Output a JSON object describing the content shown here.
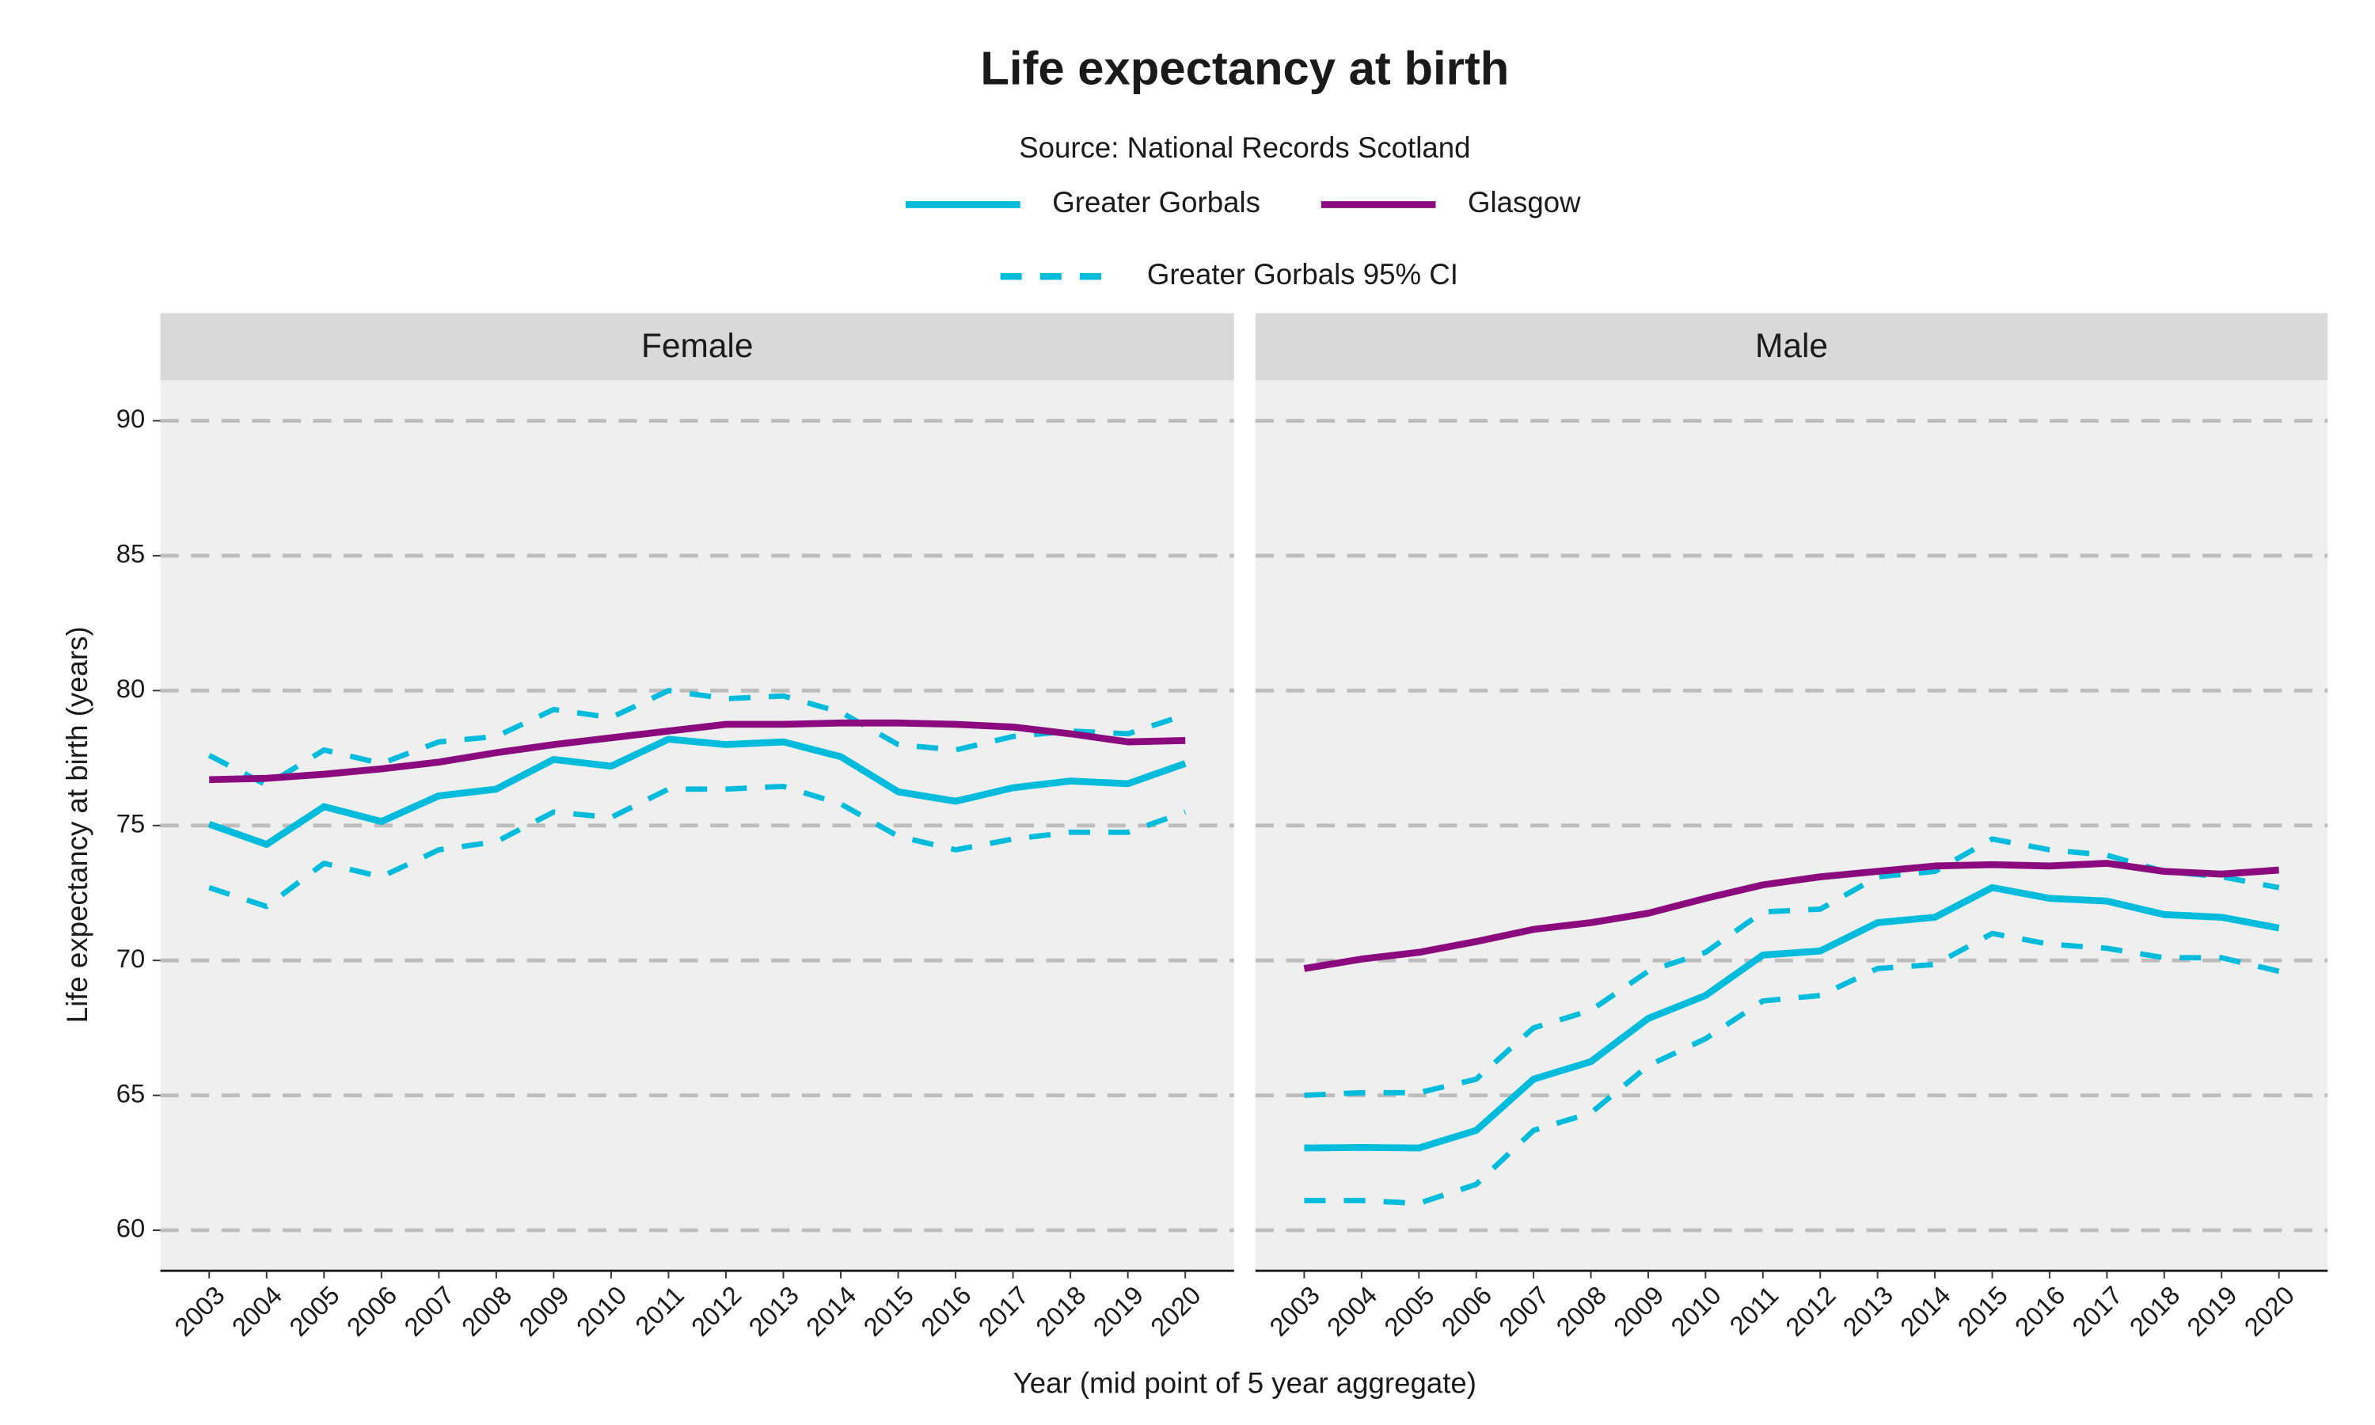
{
  "chart_data": {
    "type": "line",
    "title": "Life expectancy at birth",
    "subtitle": "Source: National Records Scotland",
    "x_label": "Year (mid point of 5 year aggregate)",
    "y_label": "Life expectancy at birth (years)",
    "x": [
      2003,
      2004,
      2005,
      2006,
      2007,
      2008,
      2009,
      2010,
      2011,
      2012,
      2013,
      2014,
      2015,
      2016,
      2017,
      2018,
      2019,
      2020
    ],
    "xlim": [
      2002.15,
      2020.85
    ],
    "xticks": [
      2003,
      2004,
      2005,
      2006,
      2007,
      2008,
      2009,
      2010,
      2011,
      2012,
      2013,
      2014,
      2015,
      2016,
      2017,
      2018,
      2019,
      2020
    ],
    "ylim": [
      58.5,
      91.5
    ],
    "yticks": [
      60,
      65,
      70,
      75,
      80,
      85,
      90
    ],
    "grid": true,
    "legend_position": "top",
    "series": [
      {
        "name": "Greater Gorbals",
        "color": "#00bcdc",
        "dash": false
      },
      {
        "name": "Glasgow",
        "color": "#8b0b7e",
        "dash": false
      },
      {
        "name": "Greater Gorbals 95% CI",
        "color": "#00bcdc",
        "dash": true
      }
    ],
    "panels": [
      {
        "label": "Female",
        "values": [
          [
            75.05,
            74.3,
            75.7,
            75.15,
            76.1,
            76.35,
            77.45,
            77.2,
            78.2,
            78.0,
            78.1,
            77.55,
            76.25,
            75.9,
            76.4,
            76.65,
            76.55,
            77.3
          ],
          [
            76.7,
            76.75,
            76.9,
            77.1,
            77.35,
            77.7,
            78.0,
            78.25,
            78.5,
            78.75,
            78.75,
            78.8,
            78.8,
            78.75,
            78.65,
            78.4,
            78.1,
            78.15
          ]
        ],
        "ci_upper": [
          77.6,
          76.5,
          77.8,
          77.3,
          78.1,
          78.3,
          79.3,
          79.0,
          80.0,
          79.7,
          79.8,
          79.2,
          78.0,
          77.8,
          78.3,
          78.5,
          78.4,
          79.1
        ],
        "ci_lower": [
          72.7,
          72.0,
          73.6,
          73.1,
          74.1,
          74.4,
          75.5,
          75.3,
          76.35,
          76.35,
          76.45,
          75.8,
          74.6,
          74.1,
          74.5,
          74.75,
          74.75,
          75.5
        ]
      },
      {
        "label": "Male",
        "values": [
          [
            63.05,
            63.07,
            63.05,
            63.7,
            65.6,
            66.25,
            67.85,
            68.7,
            70.2,
            70.35,
            71.4,
            71.6,
            72.7,
            72.3,
            72.2,
            71.7,
            71.6,
            71.2
          ],
          [
            69.7,
            70.05,
            70.3,
            70.7,
            71.15,
            71.4,
            71.75,
            72.3,
            72.8,
            73.1,
            73.3,
            73.5,
            73.55,
            73.5,
            73.6,
            73.3,
            73.2,
            73.35
          ]
        ],
        "ci_upper": [
          65.0,
          65.1,
          65.1,
          65.6,
          67.5,
          68.15,
          69.6,
          70.3,
          71.8,
          71.9,
          73.1,
          73.3,
          74.5,
          74.1,
          73.9,
          73.3,
          73.1,
          72.7
        ],
        "ci_lower": [
          61.1,
          61.1,
          61.0,
          61.7,
          63.7,
          64.35,
          66.1,
          67.1,
          68.5,
          68.7,
          69.7,
          69.85,
          71.0,
          70.6,
          70.45,
          70.1,
          70.1,
          69.6
        ]
      }
    ]
  }
}
